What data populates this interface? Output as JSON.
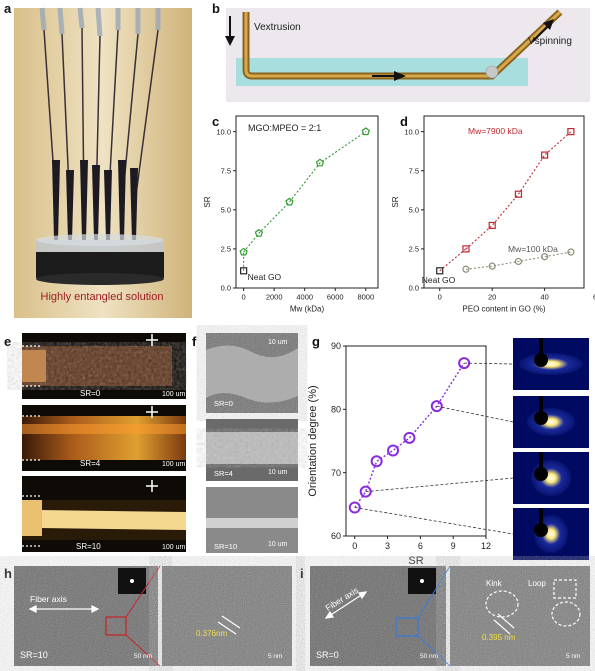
{
  "panels": {
    "a": {
      "letter": "a",
      "caption": "Highly entangled solution"
    },
    "b": {
      "letter": "b",
      "v_extrusion": "Vextrusion",
      "v_spinning": "Vspinning"
    },
    "e": {
      "letter": "e",
      "labels": [
        "SR=0",
        "SR=4",
        "SR=10"
      ],
      "scale": "100 um"
    },
    "f": {
      "letter": "f",
      "labels": [
        "SR=0",
        "SR=4",
        "SR=10"
      ],
      "scale": "10 um"
    },
    "h": {
      "letter": "h",
      "fiber_axis": "Fiber axis",
      "sr": "SR=10",
      "scale_left": "50 nm",
      "spacing": "0.376nm",
      "scale_right": "5 nm"
    },
    "i": {
      "letter": "i",
      "fiber_axis": "Fiber axis",
      "sr": "SR=0",
      "scale_left": "50 nm",
      "spacing": "0.395 nm",
      "scale_right": "5 nm",
      "kink": "Kink",
      "loop": "Loop"
    }
  },
  "chart_data": [
    {
      "panel": "c",
      "type": "scatter",
      "annotation": "MGO:MPEO = 2:1",
      "neat_label": "Neat GO",
      "xlabel": "Mw (kDa)",
      "ylabel": "SR",
      "xlim": [
        -500,
        8800
      ],
      "ylim": [
        0,
        11
      ],
      "xticks": [
        0,
        2000,
        4000,
        6000,
        8000
      ],
      "yticks": [
        0,
        2.5,
        5.0,
        7.5,
        10.0
      ],
      "series": [
        {
          "x": [
            0,
            1000,
            3000,
            5000,
            8000
          ],
          "y": [
            2.3,
            3.5,
            5.5,
            8.0,
            10.0
          ],
          "color": "#2e9a2e",
          "marker": "pentagon"
        }
      ],
      "neat": {
        "x": 0,
        "y": 1.1,
        "color": "#222222"
      }
    },
    {
      "panel": "d",
      "type": "scatter",
      "xlabel": "PEO content in GO (%)",
      "ylabel": "SR",
      "xlim": [
        -6,
        55
      ],
      "ylim": [
        0,
        11
      ],
      "xticks": [
        0,
        20,
        40,
        60
      ],
      "yticks": [
        0,
        2.5,
        5.0,
        7.5,
        10.0
      ],
      "neat_label": "Neat GO",
      "series": [
        {
          "name": "Mw=7900 kDa",
          "x": [
            10,
            20,
            30,
            40,
            50
          ],
          "y": [
            2.5,
            4.0,
            6.0,
            8.5,
            10.0
          ],
          "color": "#c0282d",
          "marker": "square"
        },
        {
          "name": "Mw=100 kDa",
          "x": [
            10,
            20,
            30,
            40,
            50
          ],
          "y": [
            1.2,
            1.4,
            1.7,
            2.0,
            2.3
          ],
          "color": "#8c8c78",
          "marker": "circle"
        }
      ],
      "neat": {
        "x": 0,
        "y": 1.1,
        "color": "#222222"
      }
    },
    {
      "panel": "g",
      "type": "scatter",
      "xlabel": "SR",
      "ylabel": "Orientation degree (%)",
      "xlim": [
        -0.8,
        12
      ],
      "ylim": [
        60,
        90
      ],
      "xticks": [
        0,
        3,
        6,
        9,
        12
      ],
      "yticks": [
        60,
        70,
        80,
        90
      ],
      "series": [
        {
          "x": [
            0,
            1,
            2,
            3.5,
            5,
            7.5,
            10
          ],
          "y": [
            64.5,
            67,
            71.8,
            73.5,
            75.5,
            80.5,
            87.3
          ],
          "color": "#8a2be2",
          "marker": "circle"
        }
      ]
    }
  ]
}
